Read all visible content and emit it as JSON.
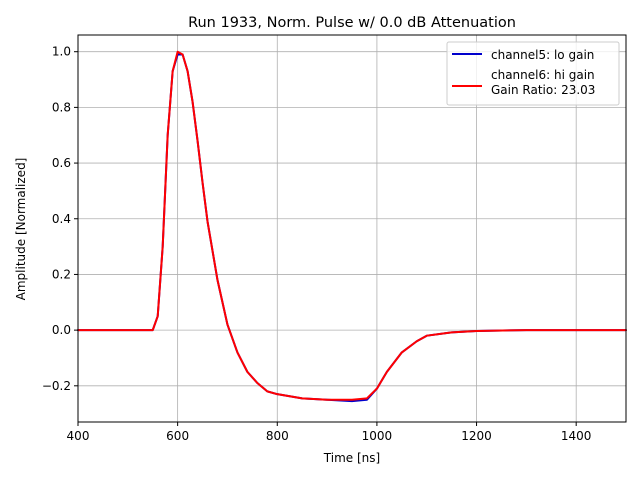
{
  "chart_data": {
    "type": "line",
    "title": "Run 1933, Norm. Pulse w/ 0.0 dB Attenuation",
    "xlabel": "Time [ns]",
    "ylabel": "Amplitude [Normalized]",
    "xlim": [
      400,
      1500
    ],
    "ylim": [
      -0.33,
      1.06
    ],
    "xticks": [
      400,
      600,
      800,
      1000,
      1200,
      1400
    ],
    "yticks": [
      -0.2,
      0.0,
      0.2,
      0.4,
      0.6,
      0.8,
      1.0
    ],
    "xtick_labels": [
      "400",
      "600",
      "800",
      "1000",
      "1200",
      "1400"
    ],
    "ytick_labels": [
      "−0.2",
      "0.0",
      "0.2",
      "0.4",
      "0.6",
      "0.8",
      "1.0"
    ],
    "grid": true,
    "legend": {
      "position": "top-right",
      "entries": [
        "channel5: lo gain",
        "channel6: hi gain\nGain Ratio: 23.03"
      ]
    },
    "x": [
      400,
      450,
      500,
      550,
      560,
      570,
      580,
      590,
      600,
      610,
      620,
      630,
      640,
      650,
      660,
      680,
      700,
      720,
      740,
      760,
      780,
      800,
      850,
      900,
      950,
      980,
      1000,
      1020,
      1050,
      1080,
      1100,
      1150,
      1200,
      1300,
      1400,
      1500
    ],
    "series": [
      {
        "name": "channel5: lo gain",
        "color": "#0000cc",
        "values": [
          0.0,
          0.0,
          0.0,
          0.0,
          0.05,
          0.3,
          0.7,
          0.93,
          0.99,
          0.99,
          0.93,
          0.82,
          0.68,
          0.53,
          0.39,
          0.18,
          0.02,
          -0.08,
          -0.15,
          -0.19,
          -0.22,
          -0.23,
          -0.245,
          -0.25,
          -0.255,
          -0.25,
          -0.21,
          -0.15,
          -0.08,
          -0.04,
          -0.02,
          -0.008,
          -0.003,
          0.0,
          0.0,
          0.0
        ]
      },
      {
        "name": "channel6: hi gain",
        "color": "#ff0000",
        "values": [
          0.0,
          0.0,
          0.0,
          0.0,
          0.05,
          0.3,
          0.7,
          0.93,
          1.0,
          0.99,
          0.93,
          0.82,
          0.68,
          0.53,
          0.39,
          0.18,
          0.02,
          -0.08,
          -0.15,
          -0.19,
          -0.22,
          -0.23,
          -0.245,
          -0.25,
          -0.25,
          -0.245,
          -0.21,
          -0.15,
          -0.08,
          -0.04,
          -0.02,
          -0.008,
          -0.003,
          0.0,
          0.0,
          0.0
        ]
      }
    ]
  }
}
